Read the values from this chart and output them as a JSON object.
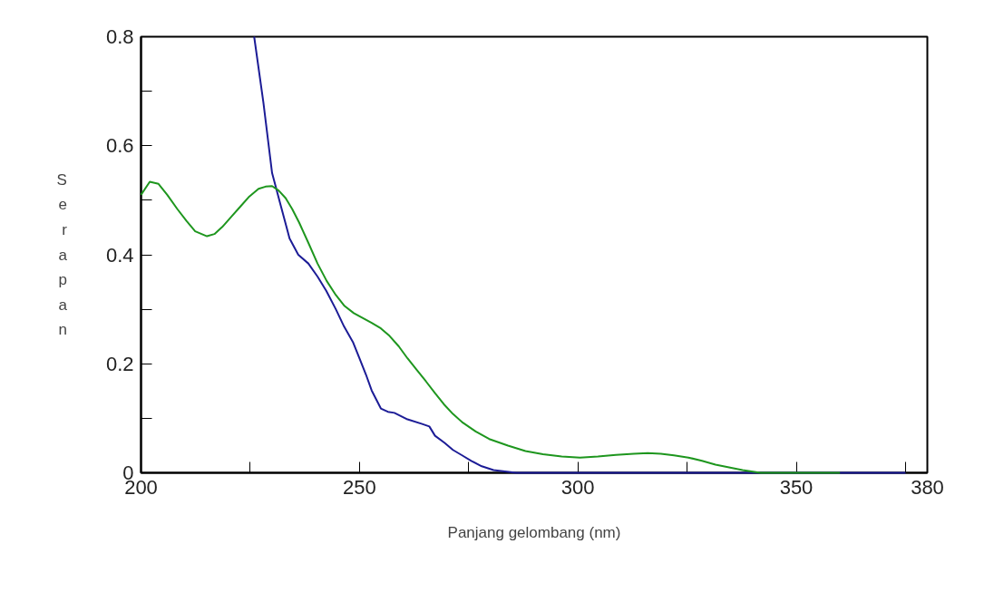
{
  "chart_data": {
    "type": "line",
    "xlabel": "Panjang gelombang (nm)",
    "ylabel": "Serapan",
    "xlim": [
      200,
      380
    ],
    "ylim": [
      0,
      0.8
    ],
    "xticks": [
      200,
      {
        "value": 225,
        "label": null
      },
      250,
      {
        "value": 275,
        "label": null
      },
      300,
      {
        "value": 325,
        "label": null
      },
      350,
      {
        "value": 375,
        "label": null
      },
      380
    ],
    "yticks": [
      0,
      {
        "value": 0.1,
        "label": null
      },
      0.2,
      {
        "value": 0.3,
        "label": null
      },
      0.4,
      {
        "value": 0.5,
        "label": null
      },
      0.6,
      {
        "value": 0.7,
        "label": null
      },
      0.8
    ],
    "grid": false,
    "marker": "none",
    "line_style": "solid",
    "series": [
      {
        "color": "#1c1c96",
        "x": [
          225.9,
          228,
          230,
          232,
          234,
          236,
          238.3,
          240.4,
          242.4,
          244.6,
          246.5,
          248.5,
          250,
          251.5,
          252.8,
          254.9,
          256.5,
          258,
          261,
          264.2,
          266,
          267.3,
          269.5,
          271.4,
          273.5,
          275.6,
          278,
          280.7,
          285.9,
          300,
          370,
          375
        ],
        "values": [
          0.8,
          0.68,
          0.55,
          0.49,
          0.43,
          0.4,
          0.384,
          0.36,
          0.334,
          0.3,
          0.268,
          0.24,
          0.21,
          0.18,
          0.151,
          0.118,
          0.112,
          0.11,
          0.098,
          0.09,
          0.085,
          0.068,
          0.055,
          0.042,
          0.032,
          0.022,
          0.012,
          0.005,
          0,
          0,
          0,
          0
        ]
      },
      {
        "color": "#1e961e",
        "x": [
          200,
          202,
          204,
          206,
          208.3,
          210.4,
          212.4,
          215.1,
          216.8,
          218.6,
          220.7,
          222.8,
          224.8,
          226.9,
          228.5,
          230,
          231.5,
          233.1,
          234.6,
          236.2,
          238.3,
          240.4,
          242.5,
          244.6,
          246.6,
          248.7,
          250.7,
          252.8,
          254.9,
          256.9,
          259,
          261,
          263.1,
          265.2,
          267.3,
          269.3,
          271.4,
          273.5,
          276.6,
          279.7,
          284,
          288,
          292,
          296.3,
          300.5,
          304.6,
          308.7,
          312.8,
          316,
          319,
          322,
          325.3,
          328.4,
          331.5,
          334.6,
          337.7,
          341.8,
          360
        ],
        "values": [
          0.51,
          0.534,
          0.53,
          0.51,
          0.484,
          0.462,
          0.443,
          0.434,
          0.438,
          0.451,
          0.47,
          0.489,
          0.507,
          0.521,
          0.525,
          0.526,
          0.518,
          0.504,
          0.484,
          0.459,
          0.422,
          0.384,
          0.352,
          0.326,
          0.306,
          0.293,
          0.284,
          0.275,
          0.265,
          0.251,
          0.232,
          0.21,
          0.189,
          0.168,
          0.146,
          0.126,
          0.108,
          0.093,
          0.076,
          0.062,
          0.05,
          0.04,
          0.034,
          0.03,
          0.028,
          0.03,
          0.033,
          0.035,
          0.036,
          0.035,
          0.032,
          0.028,
          0.022,
          0.015,
          0.01,
          0.005,
          0,
          0
        ]
      }
    ]
  }
}
